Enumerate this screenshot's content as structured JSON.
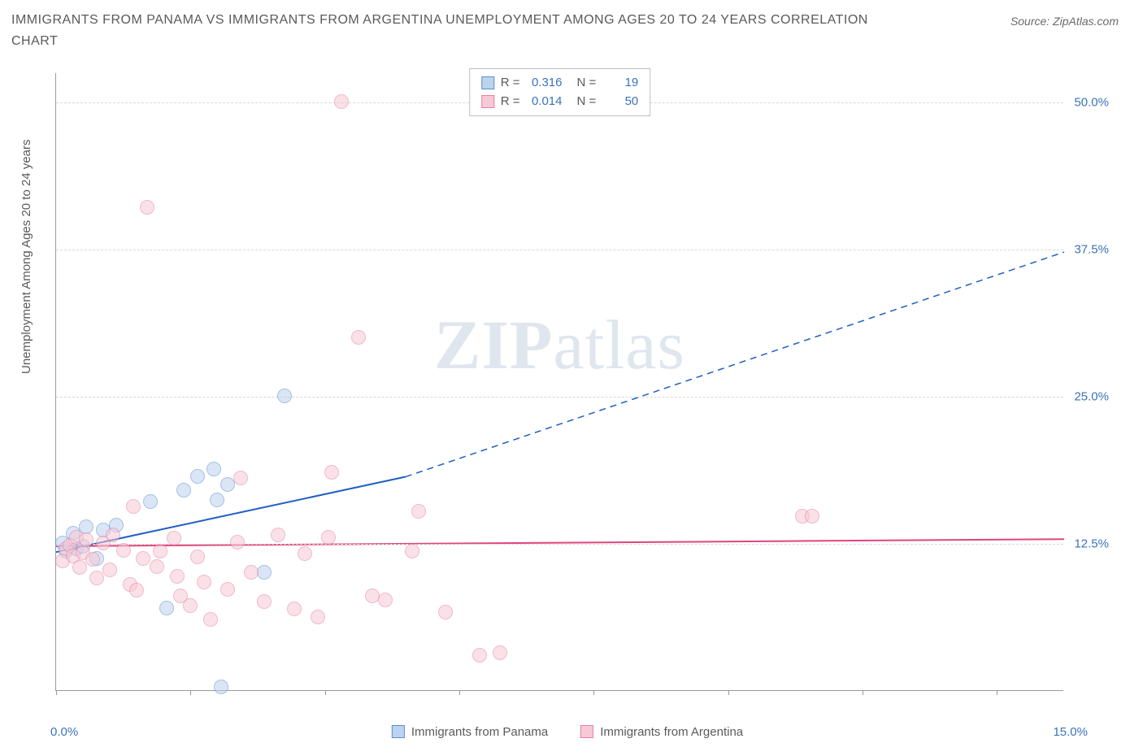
{
  "header": {
    "title": "IMMIGRANTS FROM PANAMA VS IMMIGRANTS FROM ARGENTINA UNEMPLOYMENT AMONG AGES 20 TO 24 YEARS CORRELATION CHART",
    "source": "Source: ZipAtlas.com"
  },
  "chart": {
    "type": "scatter",
    "y_axis_label": "Unemployment Among Ages 20 to 24 years",
    "background_color": "#ffffff",
    "grid_color": "#d8d8d8",
    "axis_color": "#999999",
    "tick_label_color": "#3b73b9",
    "xlim": [
      0.0,
      15.0
    ],
    "ylim": [
      0.0,
      52.5
    ],
    "x_ticks": [
      0.0,
      2.0,
      4.0,
      6.0,
      8.0,
      10.0,
      12.0,
      14.0
    ],
    "x_tick_labels": {
      "min": "0.0%",
      "max": "15.0%"
    },
    "y_ticks": [
      12.5,
      25.0,
      37.5,
      50.0
    ],
    "y_tick_labels": [
      "12.5%",
      "25.0%",
      "37.5%",
      "50.0%"
    ],
    "marker_radius": 9,
    "marker_opacity": 0.55,
    "watermark": {
      "text_bold": "ZIP",
      "text_light": "atlas"
    },
    "stats": [
      {
        "swatch_fill": "#bcd3ef",
        "swatch_border": "#5b8fd0",
        "r_label": "R =",
        "r_value": "0.316",
        "n_label": "N =",
        "n_value": "19"
      },
      {
        "swatch_fill": "#f6c9d6",
        "swatch_border": "#e77fa3",
        "r_label": "R =",
        "r_value": "0.014",
        "n_label": "N =",
        "n_value": "50"
      }
    ],
    "series": [
      {
        "name": "Immigrants from Panama",
        "fill": "#bcd3ef",
        "border": "#5b8fd0",
        "regression": {
          "color": "#1f5fc4",
          "solid_to_x": 5.2,
          "y_start": 11.8,
          "y_at_solid_end": 18.2,
          "y_end": 37.3,
          "width": 2
        },
        "points": [
          {
            "x": 0.1,
            "y": 12.5
          },
          {
            "x": 0.15,
            "y": 11.8
          },
          {
            "x": 0.25,
            "y": 13.3
          },
          {
            "x": 0.3,
            "y": 12.0
          },
          {
            "x": 0.4,
            "y": 12.2
          },
          {
            "x": 0.45,
            "y": 13.9
          },
          {
            "x": 0.6,
            "y": 11.2
          },
          {
            "x": 0.7,
            "y": 13.6
          },
          {
            "x": 0.9,
            "y": 14.0
          },
          {
            "x": 1.4,
            "y": 16.0
          },
          {
            "x": 1.65,
            "y": 7.0
          },
          {
            "x": 1.9,
            "y": 17.0
          },
          {
            "x": 2.1,
            "y": 18.2
          },
          {
            "x": 2.35,
            "y": 18.8
          },
          {
            "x": 2.4,
            "y": 16.2
          },
          {
            "x": 2.45,
            "y": 0.3
          },
          {
            "x": 2.55,
            "y": 17.5
          },
          {
            "x": 3.1,
            "y": 10.0
          },
          {
            "x": 3.4,
            "y": 25.0
          }
        ]
      },
      {
        "name": "Immigrants from Argentina",
        "fill": "#f6c9d6",
        "border": "#e77fa3",
        "regression": {
          "color": "#e0457e",
          "solid_to_x": 15.0,
          "y_start": 12.3,
          "y_at_solid_end": 12.9,
          "y_end": 12.9,
          "width": 2
        },
        "points": [
          {
            "x": 0.1,
            "y": 11.0
          },
          {
            "x": 0.15,
            "y": 12.0
          },
          {
            "x": 0.2,
            "y": 12.3
          },
          {
            "x": 0.25,
            "y": 11.4
          },
          {
            "x": 0.3,
            "y": 13.0
          },
          {
            "x": 0.35,
            "y": 10.4
          },
          {
            "x": 0.4,
            "y": 11.7
          },
          {
            "x": 0.45,
            "y": 12.8
          },
          {
            "x": 0.55,
            "y": 11.1
          },
          {
            "x": 0.6,
            "y": 9.5
          },
          {
            "x": 0.7,
            "y": 12.5
          },
          {
            "x": 0.8,
            "y": 10.2
          },
          {
            "x": 0.85,
            "y": 13.2
          },
          {
            "x": 1.0,
            "y": 11.9
          },
          {
            "x": 1.1,
            "y": 9.0
          },
          {
            "x": 1.15,
            "y": 15.6
          },
          {
            "x": 1.2,
            "y": 8.5
          },
          {
            "x": 1.3,
            "y": 11.2
          },
          {
            "x": 1.35,
            "y": 41.0
          },
          {
            "x": 1.5,
            "y": 10.5
          },
          {
            "x": 1.55,
            "y": 11.8
          },
          {
            "x": 1.75,
            "y": 12.9
          },
          {
            "x": 1.8,
            "y": 9.7
          },
          {
            "x": 1.85,
            "y": 8.0
          },
          {
            "x": 2.0,
            "y": 7.2
          },
          {
            "x": 2.1,
            "y": 11.3
          },
          {
            "x": 2.2,
            "y": 9.2
          },
          {
            "x": 2.3,
            "y": 6.0
          },
          {
            "x": 2.55,
            "y": 8.6
          },
          {
            "x": 2.7,
            "y": 12.6
          },
          {
            "x": 2.75,
            "y": 18.0
          },
          {
            "x": 2.9,
            "y": 10.0
          },
          {
            "x": 3.1,
            "y": 7.5
          },
          {
            "x": 3.3,
            "y": 13.2
          },
          {
            "x": 3.55,
            "y": 6.9
          },
          {
            "x": 3.7,
            "y": 11.6
          },
          {
            "x": 3.9,
            "y": 6.2
          },
          {
            "x": 4.05,
            "y": 13.0
          },
          {
            "x": 4.1,
            "y": 18.5
          },
          {
            "x": 4.25,
            "y": 50.0
          },
          {
            "x": 4.5,
            "y": 30.0
          },
          {
            "x": 4.7,
            "y": 8.0
          },
          {
            "x": 4.9,
            "y": 7.7
          },
          {
            "x": 5.3,
            "y": 11.8
          },
          {
            "x": 5.4,
            "y": 15.2
          },
          {
            "x": 5.8,
            "y": 6.6
          },
          {
            "x": 6.3,
            "y": 3.0
          },
          {
            "x": 6.6,
            "y": 3.2
          },
          {
            "x": 11.1,
            "y": 14.8
          },
          {
            "x": 11.25,
            "y": 14.8
          }
        ]
      }
    ],
    "legend": [
      {
        "swatch_fill": "#bcd3ef",
        "swatch_border": "#5b8fd0",
        "label": "Immigrants from Panama"
      },
      {
        "swatch_fill": "#f6c9d6",
        "swatch_border": "#e77fa3",
        "label": "Immigrants from Argentina"
      }
    ]
  }
}
